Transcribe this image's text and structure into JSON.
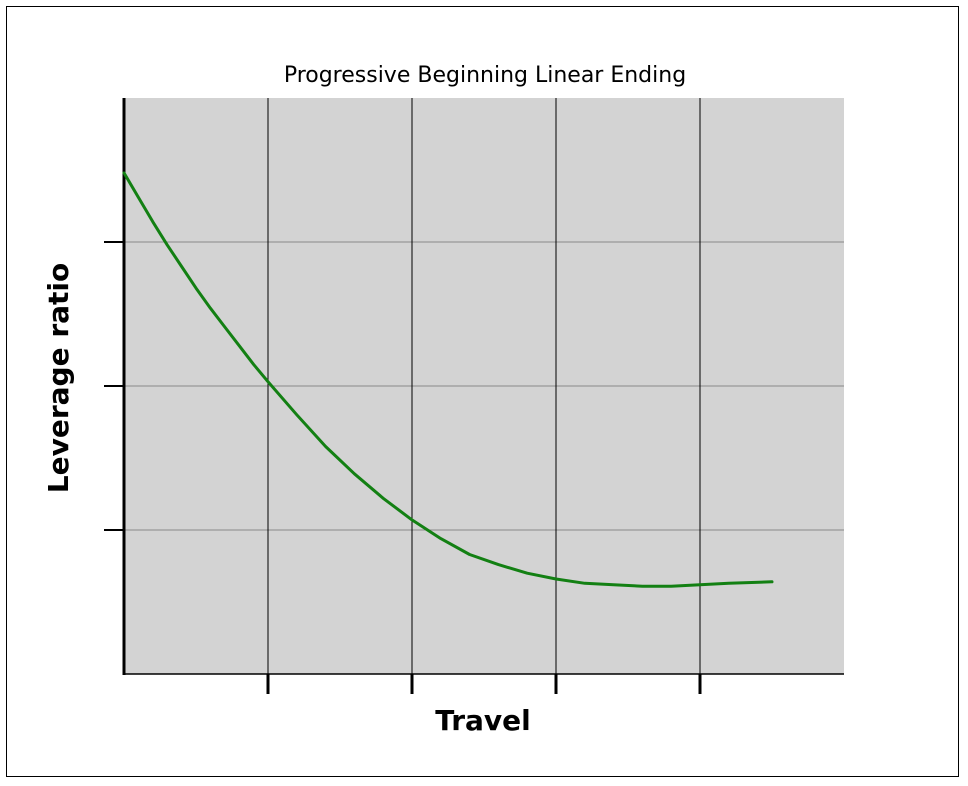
{
  "chart_data": {
    "type": "line",
    "title": "Progressive Beginning Linear Ending",
    "xlabel": "Travel",
    "ylabel": "Leverage ratio",
    "xlim": [
      0,
      5
    ],
    "ylim": [
      0,
      4
    ],
    "x_ticks": [
      1,
      2,
      3,
      4
    ],
    "y_ticks": [
      1,
      2,
      3
    ],
    "tick_labels_shown": false,
    "grid": true,
    "legend": "none",
    "series": [
      {
        "color": "#138013",
        "x": [
          0,
          0.1,
          0.2,
          0.3,
          0.4,
          0.5,
          0.6,
          0.7,
          0.8,
          0.9,
          1.0,
          1.2,
          1.4,
          1.6,
          1.8,
          2.0,
          2.2,
          2.4,
          2.6,
          2.8,
          3.0,
          3.2,
          3.4,
          3.6,
          3.8,
          4.0,
          4.2,
          4.5
        ],
        "y": [
          3.48,
          3.31,
          3.14,
          2.98,
          2.83,
          2.68,
          2.54,
          2.41,
          2.28,
          2.15,
          2.03,
          1.8,
          1.58,
          1.39,
          1.22,
          1.07,
          0.94,
          0.83,
          0.76,
          0.7,
          0.66,
          0.63,
          0.62,
          0.61,
          0.61,
          0.62,
          0.63,
          0.64
        ]
      }
    ],
    "colors": {
      "plot_background": "#d3d3d3",
      "grid_horizontal": "#8a8a8a",
      "grid_vertical": "#000000",
      "axis": "#000000"
    }
  }
}
